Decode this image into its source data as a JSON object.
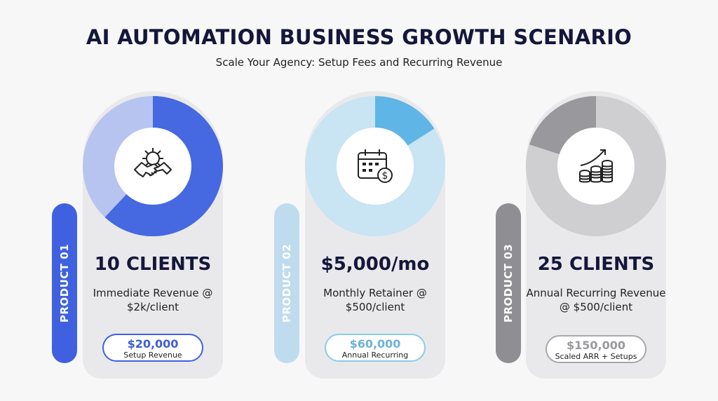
{
  "header": {
    "title": "AI AUTOMATION BUSINESS GROWTH SCENARIO",
    "subtitle": "Scale Your Agency: Setup Fees and Recurring Revenue"
  },
  "cards": [
    {
      "side_label": "PRODUCT 01",
      "icon": "handshake-gear-icon",
      "headline": "10 CLIENTS",
      "desc": "Immediate Revenue @ $2k/client",
      "pill_value": "$20,000",
      "pill_label": "Setup Revenue",
      "colors": {
        "accent": "#4668e0",
        "light": "#b7c4ef",
        "side": "#3f61e0",
        "pill_value": "#3f5fcf",
        "pill_border": "#3f61e0"
      },
      "donut_highlight_start": 0,
      "donut_highlight_fraction": 0.62
    },
    {
      "side_label": "PRODUCT 02",
      "icon": "calendar-dollar-icon",
      "headline": "$5,000/mo",
      "desc": "Monthly Retainer @ $500/client",
      "pill_value": "$60,000",
      "pill_label": "Annual Recurring",
      "colors": {
        "accent": "#5fb5e5",
        "light": "#c9e4f3",
        "side": "#bfdcef",
        "pill_value": "#6fb2d6",
        "pill_border": "#8ccbe9"
      },
      "donut_highlight_start": 0,
      "donut_highlight_fraction": 0.16
    },
    {
      "side_label": "PRODUCT 03",
      "icon": "coins-growth-icon",
      "headline": "25 CLIENTS",
      "desc": "Annual Recurring Revenue @ $500/client",
      "pill_value": "$150,000",
      "pill_label": "Scaled ARR + Setups",
      "colors": {
        "accent": "#99999d",
        "light": "#cfcfd2",
        "side": "#8f8f93",
        "pill_value": "#9a9a9e",
        "pill_border": "#a8a8ac"
      },
      "donut_highlight_start": -0.2,
      "donut_highlight_fraction": 0.2
    }
  ]
}
